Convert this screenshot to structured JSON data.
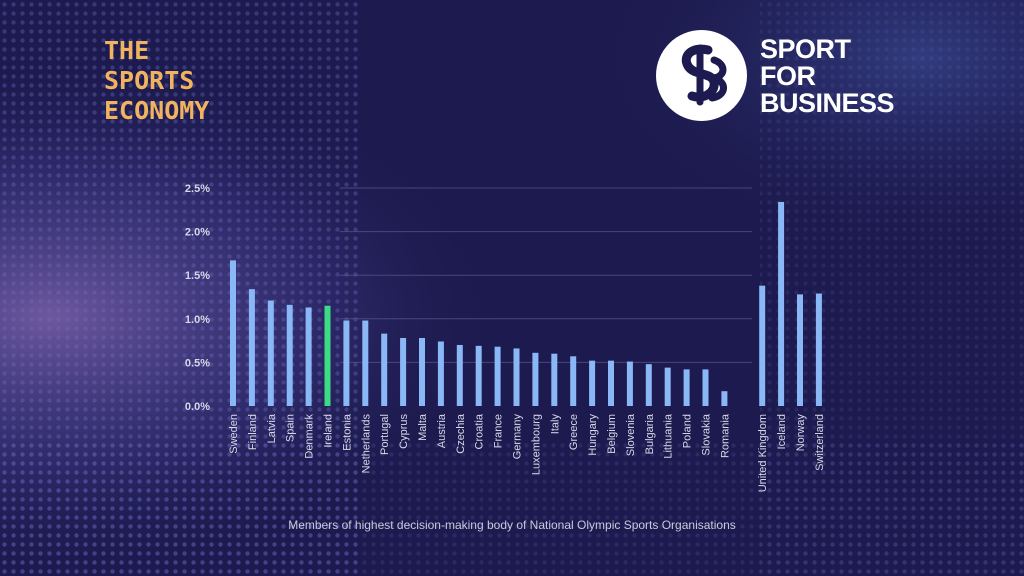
{
  "brand": {
    "lines": [
      "THE",
      "SPORTS",
      "ECONOMY"
    ],
    "color": "#f2b35f"
  },
  "logo": {
    "mark_icon": "sb-monogram-icon",
    "lines": [
      "SPORT",
      "FOR",
      "BUSINESS"
    ],
    "color": "#ffffff"
  },
  "caption": "Members of highest decision-making body of National Olympic Sports Organisations",
  "colors": {
    "bar": "#8ab8f7",
    "highlight": "#3ddc84",
    "axis_text": "#d8d8e8",
    "gridline": "#5a5a8a"
  },
  "chart_data": {
    "type": "bar",
    "categories": [
      "Sweden",
      "Finland",
      "Latvia",
      "Spain",
      "Denmark",
      "Ireland",
      "Estonia",
      "Netherlands",
      "Portugal",
      "Cyprus",
      "Malta",
      "Austria",
      "Czechia",
      "Croatia",
      "France",
      "Germany",
      "Luxembourg",
      "Italy",
      "Greece",
      "Hungary",
      "Belgium",
      "Slovenia",
      "Bulgaria",
      "Lithuania",
      "Poland",
      "Slovakia",
      "Romania",
      "",
      "United Kingdom",
      "Iceland",
      "Norway",
      "Switzerland"
    ],
    "values": [
      1.67,
      1.34,
      1.21,
      1.16,
      1.13,
      1.15,
      0.98,
      0.98,
      0.83,
      0.78,
      0.78,
      0.74,
      0.7,
      0.69,
      0.68,
      0.66,
      0.61,
      0.6,
      0.57,
      0.52,
      0.52,
      0.51,
      0.48,
      0.44,
      0.42,
      0.42,
      0.17,
      null,
      1.38,
      2.34,
      1.28,
      1.29
    ],
    "highlight": "Ireland",
    "ylim": [
      0,
      2.5
    ],
    "yticks": [
      "0.0%",
      "0.5%",
      "1.0%",
      "1.5%",
      "2.0%",
      "2.5%"
    ],
    "ytick_values": [
      0,
      0.5,
      1.0,
      1.5,
      2.0,
      2.5
    ],
    "xlabel": "",
    "ylabel": "",
    "grid": true
  }
}
